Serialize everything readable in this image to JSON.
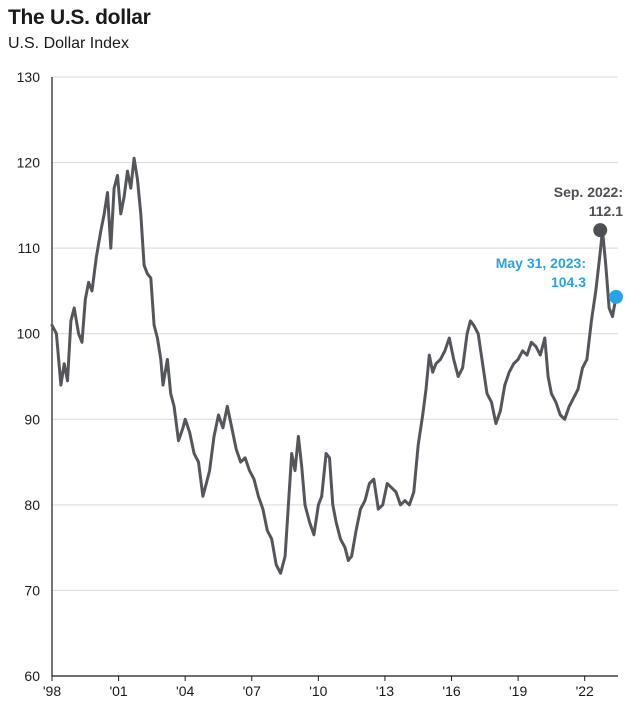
{
  "title": "The U.S. dollar",
  "subtitle": "U.S. Dollar Index",
  "colors": {
    "line": "#54565b",
    "axis": "#1a1a1a",
    "grid": "#d9d9d9",
    "peak_annotation": "#4d4f54",
    "latest_annotation": "#27a3e6"
  },
  "chart_data": {
    "type": "line",
    "title": "The U.S. dollar",
    "subtitle": "U.S. Dollar Index",
    "xlabel": "",
    "ylabel": "",
    "ylim": [
      60,
      130
    ],
    "yticks": [
      60,
      70,
      80,
      90,
      100,
      110,
      120,
      130
    ],
    "xlim": [
      1998.0,
      2023.5
    ],
    "xticks": [
      {
        "value": 1998,
        "label": "'98"
      },
      {
        "value": 2001,
        "label": "'01"
      },
      {
        "value": 2004,
        "label": "'04"
      },
      {
        "value": 2007,
        "label": "'07"
      },
      {
        "value": 2010,
        "label": "'10"
      },
      {
        "value": 2013,
        "label": "'13"
      },
      {
        "value": 2016,
        "label": "'16"
      },
      {
        "value": 2019,
        "label": "'19"
      },
      {
        "value": 2022,
        "label": "'22"
      }
    ],
    "grid": true,
    "series": [
      {
        "x": [
          1998.0,
          1998.2,
          1998.4,
          1998.55,
          1998.7,
          1998.85,
          1999.0,
          1999.2,
          1999.35,
          1999.5,
          1999.65,
          1999.8,
          2000.0,
          2000.2,
          2000.35,
          2000.5,
          2000.65,
          2000.8,
          2000.95,
          2001.1,
          2001.25,
          2001.4,
          2001.55,
          2001.7,
          2001.85,
          2002.0,
          2002.15,
          2002.3,
          2002.45,
          2002.6,
          2002.75,
          2002.9,
          2003.0,
          2003.2,
          2003.35,
          2003.5,
          2003.7,
          2003.9,
          2004.0,
          2004.2,
          2004.4,
          2004.6,
          2004.8,
          2004.95,
          2005.1,
          2005.3,
          2005.5,
          2005.7,
          2005.9,
          2006.1,
          2006.3,
          2006.5,
          2006.7,
          2006.9,
          2007.1,
          2007.3,
          2007.5,
          2007.7,
          2007.9,
          2008.1,
          2008.3,
          2008.5,
          2008.65,
          2008.8,
          2008.95,
          2009.1,
          2009.25,
          2009.4,
          2009.6,
          2009.8,
          2010.0,
          2010.15,
          2010.35,
          2010.5,
          2010.65,
          2010.8,
          2011.0,
          2011.2,
          2011.35,
          2011.5,
          2011.7,
          2011.9,
          2012.1,
          2012.3,
          2012.5,
          2012.7,
          2012.9,
          2013.1,
          2013.3,
          2013.5,
          2013.7,
          2013.9,
          2014.1,
          2014.3,
          2014.5,
          2014.7,
          2014.85,
          2015.0,
          2015.15,
          2015.3,
          2015.5,
          2015.7,
          2015.9,
          2016.1,
          2016.3,
          2016.5,
          2016.7,
          2016.85,
          2017.0,
          2017.2,
          2017.4,
          2017.6,
          2017.8,
          2018.0,
          2018.2,
          2018.4,
          2018.6,
          2018.8,
          2019.0,
          2019.2,
          2019.4,
          2019.6,
          2019.8,
          2020.0,
          2020.2,
          2020.35,
          2020.5,
          2020.7,
          2020.9,
          2021.1,
          2021.3,
          2021.5,
          2021.7,
          2021.9,
          2022.1,
          2022.3,
          2022.5,
          2022.7,
          2022.8,
          2022.95,
          2023.1,
          2023.25,
          2023.41
        ],
        "values": [
          101.0,
          100.0,
          94.0,
          96.5,
          94.5,
          101.5,
          103.0,
          100.0,
          99.0,
          104.0,
          106.0,
          105.0,
          109.0,
          112.0,
          114.0,
          116.5,
          110.0,
          117.0,
          118.5,
          114.0,
          116.0,
          119.0,
          117.0,
          120.5,
          118.0,
          114.0,
          108.0,
          107.0,
          106.5,
          101.0,
          99.5,
          97.0,
          94.0,
          97.0,
          93.0,
          91.5,
          87.5,
          89.0,
          90.0,
          88.5,
          86.0,
          85.0,
          81.0,
          82.5,
          84.0,
          88.0,
          90.5,
          89.0,
          91.5,
          89.0,
          86.5,
          85.0,
          85.5,
          84.0,
          83.0,
          81.0,
          79.5,
          77.0,
          76.0,
          73.0,
          72.0,
          74.0,
          80.0,
          86.0,
          84.0,
          88.0,
          84.5,
          80.0,
          78.0,
          76.5,
          80.0,
          81.0,
          86.0,
          85.5,
          80.0,
          78.0,
          76.0,
          75.0,
          73.5,
          74.0,
          77.0,
          79.5,
          80.5,
          82.5,
          83.0,
          79.5,
          80.0,
          82.5,
          82.0,
          81.5,
          80.0,
          80.5,
          80.0,
          81.5,
          87.0,
          90.5,
          93.5,
          97.5,
          95.5,
          96.5,
          97.0,
          98.0,
          99.5,
          97.0,
          95.0,
          96.0,
          100.0,
          101.5,
          101.0,
          100.0,
          96.5,
          93.0,
          92.0,
          89.5,
          91.0,
          94.0,
          95.5,
          96.5,
          97.0,
          98.0,
          97.5,
          99.0,
          98.5,
          97.5,
          99.5,
          95.0,
          93.0,
          92.0,
          90.5,
          90.0,
          91.5,
          92.5,
          93.5,
          96.0,
          97.0,
          101.5,
          105.0,
          109.5,
          112.1,
          108.0,
          103.0,
          102.0,
          104.3
        ]
      }
    ],
    "annotations": [
      {
        "label_line1": "Sep. 2022:",
        "label_line2": "112.1",
        "x": 2022.7,
        "y": 112.1,
        "color_key": "peak_annotation"
      },
      {
        "label_line1": "May 31, 2023:",
        "label_line2": "104.3",
        "x": 2023.41,
        "y": 104.3,
        "color_key": "latest_annotation"
      }
    ]
  }
}
